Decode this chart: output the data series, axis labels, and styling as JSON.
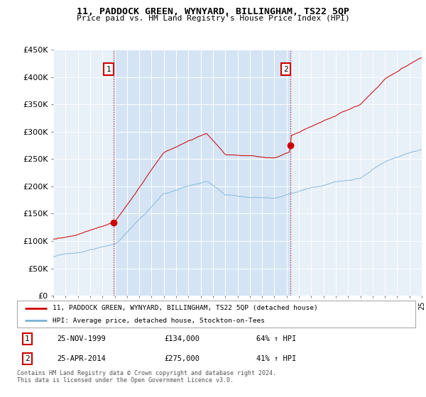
{
  "title": "11, PADDOCK GREEN, WYNYARD, BILLINGHAM, TS22 5QP",
  "subtitle": "Price paid vs. HM Land Registry's House Price Index (HPI)",
  "ylabel_ticks": [
    "£0",
    "£50K",
    "£100K",
    "£150K",
    "£200K",
    "£250K",
    "£300K",
    "£350K",
    "£400K",
    "£450K"
  ],
  "ytick_values": [
    0,
    50000,
    100000,
    150000,
    200000,
    250000,
    300000,
    350000,
    400000,
    450000
  ],
  "ylim": [
    0,
    450000
  ],
  "xlim_start": 1995.0,
  "xlim_end": 2025.0,
  "red_line_color": "#cc0000",
  "blue_line_color": "#7ab0d4",
  "shade_color": "#ddeeff",
  "purchase1_year": 1999.917,
  "purchase1_price": 134000,
  "purchase2_year": 2014.33,
  "purchase2_price": 275000,
  "legend_label1": "11, PADDOCK GREEN, WYNYARD, BILLINGHAM, TS22 5QP (detached house)",
  "legend_label2": "HPI: Average price, detached house, Stockton-on-Tees",
  "annotation1_date": "25-NOV-1999",
  "annotation1_price": "£134,000",
  "annotation1_hpi": "64% ↑ HPI",
  "annotation2_date": "25-APR-2014",
  "annotation2_price": "£275,000",
  "annotation2_hpi": "41% ↑ HPI",
  "footer_text": "Contains HM Land Registry data © Crown copyright and database right 2024.\nThis data is licensed under the Open Government Licence v3.0.",
  "background_color": "#ffffff",
  "plot_bg_color": "#e8f0f8"
}
